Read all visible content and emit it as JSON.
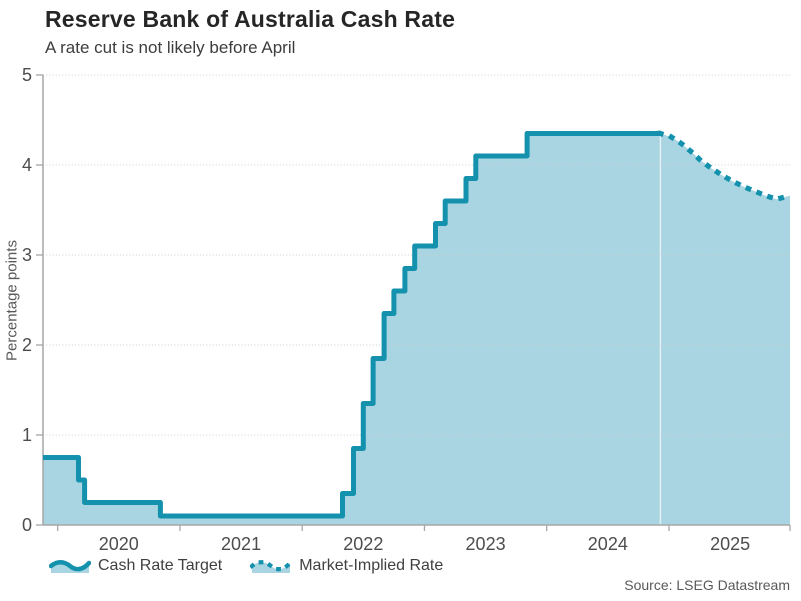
{
  "header": {
    "title": "Reserve Bank of Australia Cash Rate",
    "subtitle": "A rate cut is not likely before April"
  },
  "source": "Source: LSEG Datastream",
  "legend": [
    {
      "label": "Cash Rate Target",
      "style": "solid-area"
    },
    {
      "label": "Market-Implied Rate",
      "style": "dotted-line"
    }
  ],
  "colors": {
    "line": "#1391ad",
    "fill": "#a9d5e2",
    "grid": "#cfcfcf",
    "axis": "#a6a6a6",
    "tick_text": "#4d4d4d",
    "forecast_divider": "rgba(255,255,255,0.65)"
  },
  "chart_data": {
    "type": "area",
    "title": "Reserve Bank of Australia Cash Rate",
    "subtitle": "A rate cut is not likely before April",
    "xlabel": "",
    "ylabel": "Percentage points",
    "ylim": [
      0,
      5
    ],
    "y_ticks": [
      0,
      1,
      2,
      3,
      4,
      5
    ],
    "x_tick_years": [
      2020,
      2021,
      2022,
      2023,
      2024,
      2025
    ],
    "x_range": [
      2019.88,
      2025.99
    ],
    "grid": "horizontal-dotted",
    "legend_position": "bottom-left",
    "series": [
      {
        "name": "Cash Rate Target",
        "render": "step-area",
        "points": [
          [
            2019.88,
            0.75
          ],
          [
            2020.17,
            0.5
          ],
          [
            2020.22,
            0.25
          ],
          [
            2020.84,
            0.1
          ],
          [
            2022.33,
            0.35
          ],
          [
            2022.42,
            0.85
          ],
          [
            2022.5,
            1.35
          ],
          [
            2022.58,
            1.85
          ],
          [
            2022.67,
            2.35
          ],
          [
            2022.75,
            2.6
          ],
          [
            2022.84,
            2.85
          ],
          [
            2022.92,
            3.1
          ],
          [
            2023.09,
            3.35
          ],
          [
            2023.17,
            3.6
          ],
          [
            2023.34,
            3.85
          ],
          [
            2023.42,
            4.1
          ],
          [
            2023.84,
            4.35
          ],
          [
            2024.93,
            4.35
          ]
        ]
      },
      {
        "name": "Market-Implied Rate",
        "render": "dotted-line",
        "points": [
          [
            2024.93,
            4.35
          ],
          [
            2025.02,
            4.31
          ],
          [
            2025.1,
            4.24
          ],
          [
            2025.18,
            4.15
          ],
          [
            2025.26,
            4.05
          ],
          [
            2025.34,
            3.97
          ],
          [
            2025.43,
            3.89
          ],
          [
            2025.52,
            3.82
          ],
          [
            2025.61,
            3.76
          ],
          [
            2025.7,
            3.71
          ],
          [
            2025.79,
            3.66
          ],
          [
            2025.88,
            3.62
          ],
          [
            2025.99,
            3.66
          ]
        ]
      }
    ]
  }
}
